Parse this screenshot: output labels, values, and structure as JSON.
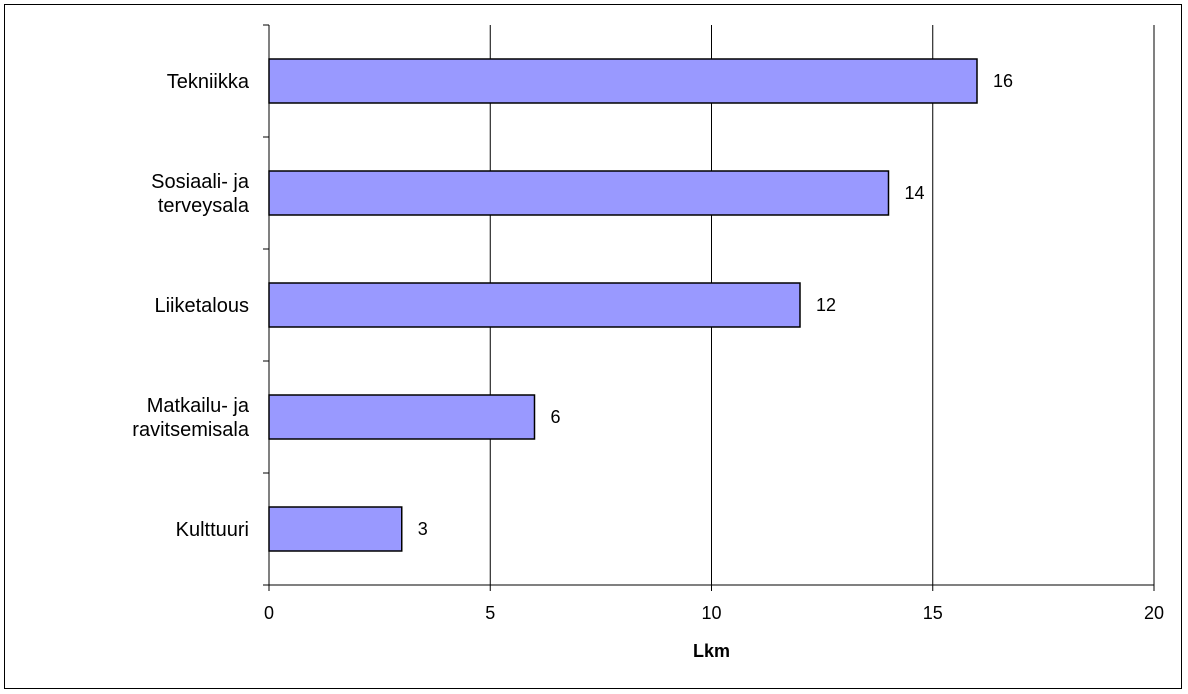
{
  "chart_data": {
    "type": "bar",
    "orientation": "horizontal",
    "title": "",
    "xlabel": "Lkm",
    "ylabel": "",
    "categories": [
      [
        "Tekniikka"
      ],
      [
        "Sosiaali- ja",
        "terveysala"
      ],
      [
        "Liiketalous"
      ],
      [
        "Matkailu- ja",
        "ravitsemisala"
      ],
      [
        "Kulttuuri"
      ]
    ],
    "values": [
      16,
      14,
      12,
      6,
      3
    ],
    "xlim": [
      0,
      20
    ],
    "xticks": [
      0,
      5,
      10,
      15,
      20
    ],
    "grid": "vertical",
    "legend": "none",
    "colors": {
      "bar_fill": "#9999FF",
      "bar_stroke": "#000000",
      "grid": "#000000",
      "axis": "#000000"
    }
  }
}
